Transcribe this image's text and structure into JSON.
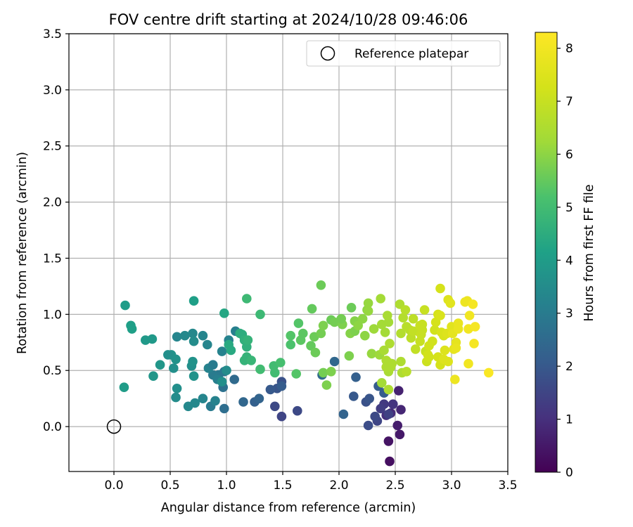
{
  "chart_data": {
    "type": "scatter",
    "title": "FOV centre drift starting at 2024/10/28 09:46:06",
    "xlabel": "Angular distance from reference (arcmin)",
    "ylabel": "Rotation from reference (arcmin)",
    "xlim": [
      -0.4,
      3.5
    ],
    "ylim": [
      -0.4,
      3.5
    ],
    "xticks": [
      0.0,
      0.5,
      1.0,
      1.5,
      2.0,
      2.5,
      3.0,
      3.5
    ],
    "yticks": [
      0.0,
      0.5,
      1.0,
      1.5,
      2.0,
      2.5,
      3.0,
      3.5
    ],
    "xtick_labels": [
      "0.0",
      "0.5",
      "1.0",
      "1.5",
      "2.0",
      "2.5",
      "3.0",
      "3.5"
    ],
    "ytick_labels": [
      "0.0",
      "0.5",
      "1.0",
      "1.5",
      "2.0",
      "2.5",
      "3.0",
      "3.5"
    ],
    "grid": true,
    "colormap": "viridis",
    "colorbar": {
      "label": "Hours from first FF file",
      "range": [
        0,
        8.3
      ],
      "ticks": [
        0,
        1,
        2,
        3,
        4,
        5,
        6,
        7,
        8
      ],
      "tick_labels": [
        "0",
        "1",
        "2",
        "3",
        "4",
        "5",
        "6",
        "7",
        "8"
      ]
    },
    "legend": {
      "placement": "top-right",
      "entries": [
        "Reference platepar"
      ]
    },
    "reference_point": {
      "x": 0.0,
      "y": 0.0
    },
    "point_fields": [
      "x",
      "y",
      "hours"
    ],
    "points": [
      [
        2.45,
        -0.31,
        0.3
      ],
      [
        2.44,
        -0.13,
        0.4
      ],
      [
        2.54,
        -0.07,
        0.5
      ],
      [
        2.52,
        0.01,
        0.6
      ],
      [
        2.53,
        0.32,
        0.7
      ],
      [
        2.55,
        0.15,
        0.8
      ],
      [
        2.46,
        0.12,
        0.9
      ],
      [
        2.42,
        0.1,
        1.0
      ],
      [
        2.48,
        0.2,
        1.1
      ],
      [
        2.4,
        0.2,
        1.2
      ],
      [
        2.37,
        0.16,
        1.3
      ],
      [
        2.44,
        0.11,
        1.4
      ],
      [
        2.34,
        0.05,
        1.5
      ],
      [
        2.32,
        0.09,
        1.6
      ],
      [
        2.26,
        0.01,
        1.7
      ],
      [
        2.24,
        0.22,
        1.8
      ],
      [
        2.27,
        0.25,
        1.9
      ],
      [
        2.13,
        0.27,
        2.0
      ],
      [
        2.35,
        0.36,
        2.1
      ],
      [
        2.4,
        0.3,
        2.1
      ],
      [
        2.15,
        0.44,
        2.2
      ],
      [
        2.04,
        0.11,
        2.3
      ],
      [
        1.96,
        0.58,
        2.4
      ],
      [
        1.85,
        0.46,
        2.5
      ],
      [
        1.49,
        0.09,
        1.5
      ],
      [
        1.43,
        0.18,
        1.6
      ],
      [
        1.63,
        0.14,
        1.6
      ],
      [
        1.49,
        0.4,
        1.8
      ],
      [
        1.45,
        0.34,
        1.9
      ],
      [
        1.39,
        0.33,
        2.0
      ],
      [
        1.49,
        0.36,
        2.1
      ],
      [
        1.25,
        0.22,
        2.2
      ],
      [
        1.29,
        0.25,
        2.3
      ],
      [
        1.15,
        0.22,
        2.4
      ],
      [
        1.07,
        0.42,
        2.5
      ],
      [
        0.98,
        0.16,
        2.6
      ],
      [
        0.97,
        0.35,
        2.7
      ],
      [
        0.98,
        0.49,
        2.8
      ],
      [
        0.93,
        0.46,
        2.9
      ],
      [
        0.88,
        0.46,
        3.0
      ],
      [
        0.92,
        0.42,
        3.1
      ],
      [
        0.84,
        0.52,
        3.2
      ],
      [
        0.88,
        0.55,
        3.0
      ],
      [
        0.86,
        0.18,
        3.0
      ],
      [
        0.9,
        0.23,
        3.2
      ],
      [
        0.79,
        0.25,
        3.3
      ],
      [
        0.72,
        0.21,
        3.4
      ],
      [
        0.66,
        0.18,
        3.4
      ],
      [
        0.55,
        0.26,
        3.5
      ],
      [
        0.56,
        0.34,
        3.6
      ],
      [
        0.69,
        0.54,
        3.6
      ],
      [
        0.71,
        0.45,
        3.7
      ],
      [
        0.7,
        0.58,
        3.7
      ],
      [
        0.53,
        0.52,
        3.6
      ],
      [
        0.51,
        0.64,
        3.7
      ],
      [
        0.48,
        0.64,
        3.6
      ],
      [
        0.55,
        0.6,
        3.7
      ],
      [
        0.41,
        0.55,
        3.8
      ],
      [
        0.35,
        0.45,
        3.8
      ],
      [
        0.28,
        0.77,
        3.9
      ],
      [
        0.34,
        0.78,
        3.9
      ],
      [
        0.56,
        0.8,
        3.3
      ],
      [
        0.63,
        0.81,
        3.4
      ],
      [
        0.7,
        0.83,
        3.4
      ],
      [
        0.79,
        0.81,
        3.3
      ],
      [
        0.83,
        0.73,
        3.3
      ],
      [
        0.71,
        0.76,
        3.5
      ],
      [
        0.96,
        0.67,
        3.2
      ],
      [
        1.02,
        0.77,
        3.2
      ],
      [
        1.08,
        0.85,
        3.1
      ],
      [
        0.96,
        0.4,
        3.6
      ],
      [
        1.0,
        0.5,
        3.5
      ],
      [
        0.09,
        0.35,
        4.0
      ],
      [
        0.1,
        1.08,
        4.0
      ],
      [
        0.15,
        0.9,
        4.1
      ],
      [
        0.16,
        0.87,
        4.1
      ],
      [
        0.71,
        1.12,
        4.1
      ],
      [
        0.98,
        1.01,
        4.3
      ],
      [
        1.02,
        0.73,
        4.4
      ],
      [
        1.04,
        0.68,
        4.4
      ],
      [
        1.12,
        0.83,
        4.5
      ],
      [
        1.14,
        0.82,
        4.5
      ],
      [
        1.16,
        0.77,
        4.6
      ],
      [
        1.16,
        0.59,
        4.7
      ],
      [
        1.18,
        0.71,
        4.6
      ],
      [
        1.19,
        0.77,
        4.7
      ],
      [
        1.18,
        0.62,
        4.7
      ],
      [
        1.22,
        0.59,
        4.8
      ],
      [
        1.18,
        1.14,
        4.9
      ],
      [
        1.3,
        1.0,
        4.9
      ],
      [
        1.3,
        0.51,
        5.0
      ],
      [
        1.42,
        0.54,
        5.0
      ],
      [
        1.43,
        0.48,
        5.0
      ],
      [
        1.48,
        0.57,
        5.1
      ],
      [
        1.57,
        0.73,
        5.2
      ],
      [
        1.57,
        0.81,
        5.3
      ],
      [
        1.62,
        0.47,
        5.3
      ],
      [
        1.64,
        0.92,
        5.3
      ],
      [
        1.66,
        0.77,
        5.4
      ],
      [
        1.68,
        0.83,
        5.4
      ],
      [
        1.75,
        0.72,
        5.5
      ],
      [
        1.76,
        1.05,
        5.5
      ],
      [
        1.79,
        0.66,
        5.6
      ],
      [
        1.78,
        0.8,
        5.6
      ],
      [
        1.84,
        0.83,
        5.7
      ],
      [
        1.86,
        0.9,
        5.8
      ],
      [
        1.84,
        1.26,
        5.6
      ],
      [
        1.89,
        0.37,
        5.8
      ],
      [
        1.93,
        0.95,
        5.6
      ],
      [
        1.96,
        0.93,
        5.7
      ],
      [
        1.86,
        0.48,
        5.7
      ],
      [
        1.93,
        0.49,
        5.8
      ],
      [
        2.03,
        0.91,
        5.8
      ],
      [
        2.02,
        0.96,
        5.7
      ],
      [
        2.09,
        0.63,
        5.8
      ],
      [
        2.11,
        1.06,
        5.6
      ],
      [
        2.1,
        0.83,
        5.9
      ],
      [
        2.14,
        0.85,
        5.8
      ],
      [
        2.14,
        0.94,
        5.9
      ],
      [
        2.17,
        0.9,
        6.0
      ],
      [
        2.21,
        0.96,
        6.0
      ],
      [
        2.23,
        0.81,
        6.0
      ],
      [
        2.25,
        1.04,
        6.0
      ],
      [
        2.26,
        1.1,
        6.1
      ],
      [
        2.26,
        1.03,
        6.1
      ],
      [
        2.29,
        0.65,
        6.1
      ],
      [
        2.31,
        0.87,
        6.2
      ],
      [
        2.36,
        0.64,
        6.2
      ],
      [
        2.37,
        1.14,
        6.3
      ],
      [
        2.38,
        0.91,
        6.3
      ],
      [
        2.38,
        0.39,
        6.3
      ],
      [
        2.41,
        0.84,
        6.3
      ],
      [
        2.44,
        0.93,
        6.3
      ],
      [
        2.43,
        0.99,
        6.4
      ],
      [
        2.4,
        0.68,
        6.4
      ],
      [
        2.44,
        0.49,
        6.4
      ],
      [
        2.44,
        0.57,
        6.4
      ],
      [
        2.45,
        0.74,
        6.5
      ],
      [
        2.47,
        0.56,
        6.5
      ],
      [
        2.44,
        0.33,
        6.5
      ],
      [
        2.42,
        0.59,
        6.5
      ],
      [
        2.42,
        0.53,
        6.5
      ],
      [
        2.46,
        0.53,
        6.5
      ],
      [
        2.55,
        0.58,
        6.5
      ],
      [
        2.54,
        1.09,
        6.5
      ],
      [
        2.56,
        0.48,
        6.5
      ],
      [
        2.55,
        0.83,
        6.6
      ],
      [
        2.57,
        0.97,
        6.6
      ],
      [
        2.59,
        1.04,
        6.7
      ],
      [
        2.6,
        0.89,
        6.7
      ],
      [
        2.6,
        0.49,
        6.7
      ],
      [
        2.63,
        0.86,
        6.7
      ],
      [
        2.64,
        0.79,
        6.8
      ],
      [
        2.66,
        0.96,
        6.8
      ],
      [
        2.66,
        0.85,
        6.9
      ],
      [
        2.68,
        0.69,
        6.9
      ],
      [
        2.7,
        0.85,
        6.9
      ],
      [
        2.72,
        0.76,
        7.0
      ],
      [
        2.72,
        0.9,
        7.0
      ],
      [
        2.73,
        0.82,
        7.0
      ],
      [
        2.74,
        0.86,
        7.0
      ],
      [
        2.74,
        0.91,
        7.0
      ],
      [
        2.76,
        1.04,
        7.0
      ],
      [
        2.77,
        0.67,
        7.0
      ],
      [
        2.78,
        0.58,
        7.1
      ],
      [
        2.79,
        0.64,
        7.2
      ],
      [
        2.8,
        0.62,
        7.2
      ],
      [
        2.8,
        0.72,
        7.2
      ],
      [
        2.83,
        0.76,
        7.2
      ],
      [
        2.85,
        0.86,
        7.2
      ],
      [
        2.86,
        0.93,
        7.3
      ],
      [
        2.88,
        0.62,
        7.3
      ],
      [
        2.88,
        1.0,
        7.3
      ],
      [
        2.9,
        1.23,
        7.3
      ],
      [
        2.9,
        0.55,
        7.3
      ],
      [
        2.9,
        0.99,
        7.4
      ],
      [
        2.91,
        0.84,
        7.4
      ],
      [
        2.93,
        0.81,
        7.4
      ],
      [
        2.93,
        0.6,
        7.5
      ],
      [
        2.94,
        0.68,
        7.5
      ],
      [
        2.96,
        0.83,
        7.5
      ],
      [
        2.97,
        1.13,
        7.5
      ],
      [
        2.97,
        0.58,
        7.5
      ],
      [
        2.99,
        1.1,
        7.6
      ],
      [
        3.0,
        0.89,
        7.6
      ],
      [
        3.01,
        0.83,
        7.7
      ],
      [
        3.02,
        0.69,
        7.7
      ],
      [
        3.04,
        0.75,
        7.7
      ],
      [
        3.04,
        0.7,
        7.8
      ],
      [
        3.06,
        0.92,
        7.8
      ],
      [
        3.06,
        0.87,
        7.8
      ],
      [
        3.03,
        0.42,
        7.9
      ],
      [
        3.12,
        1.11,
        7.9
      ],
      [
        3.14,
        1.12,
        7.9
      ],
      [
        3.15,
        0.87,
        8.0
      ],
      [
        3.15,
        0.56,
        8.0
      ],
      [
        3.16,
        0.99,
        8.0
      ],
      [
        3.19,
        1.09,
        8.1
      ],
      [
        3.2,
        0.74,
        8.1
      ],
      [
        3.21,
        0.89,
        8.1
      ],
      [
        3.33,
        0.48,
        8.2
      ]
    ]
  }
}
